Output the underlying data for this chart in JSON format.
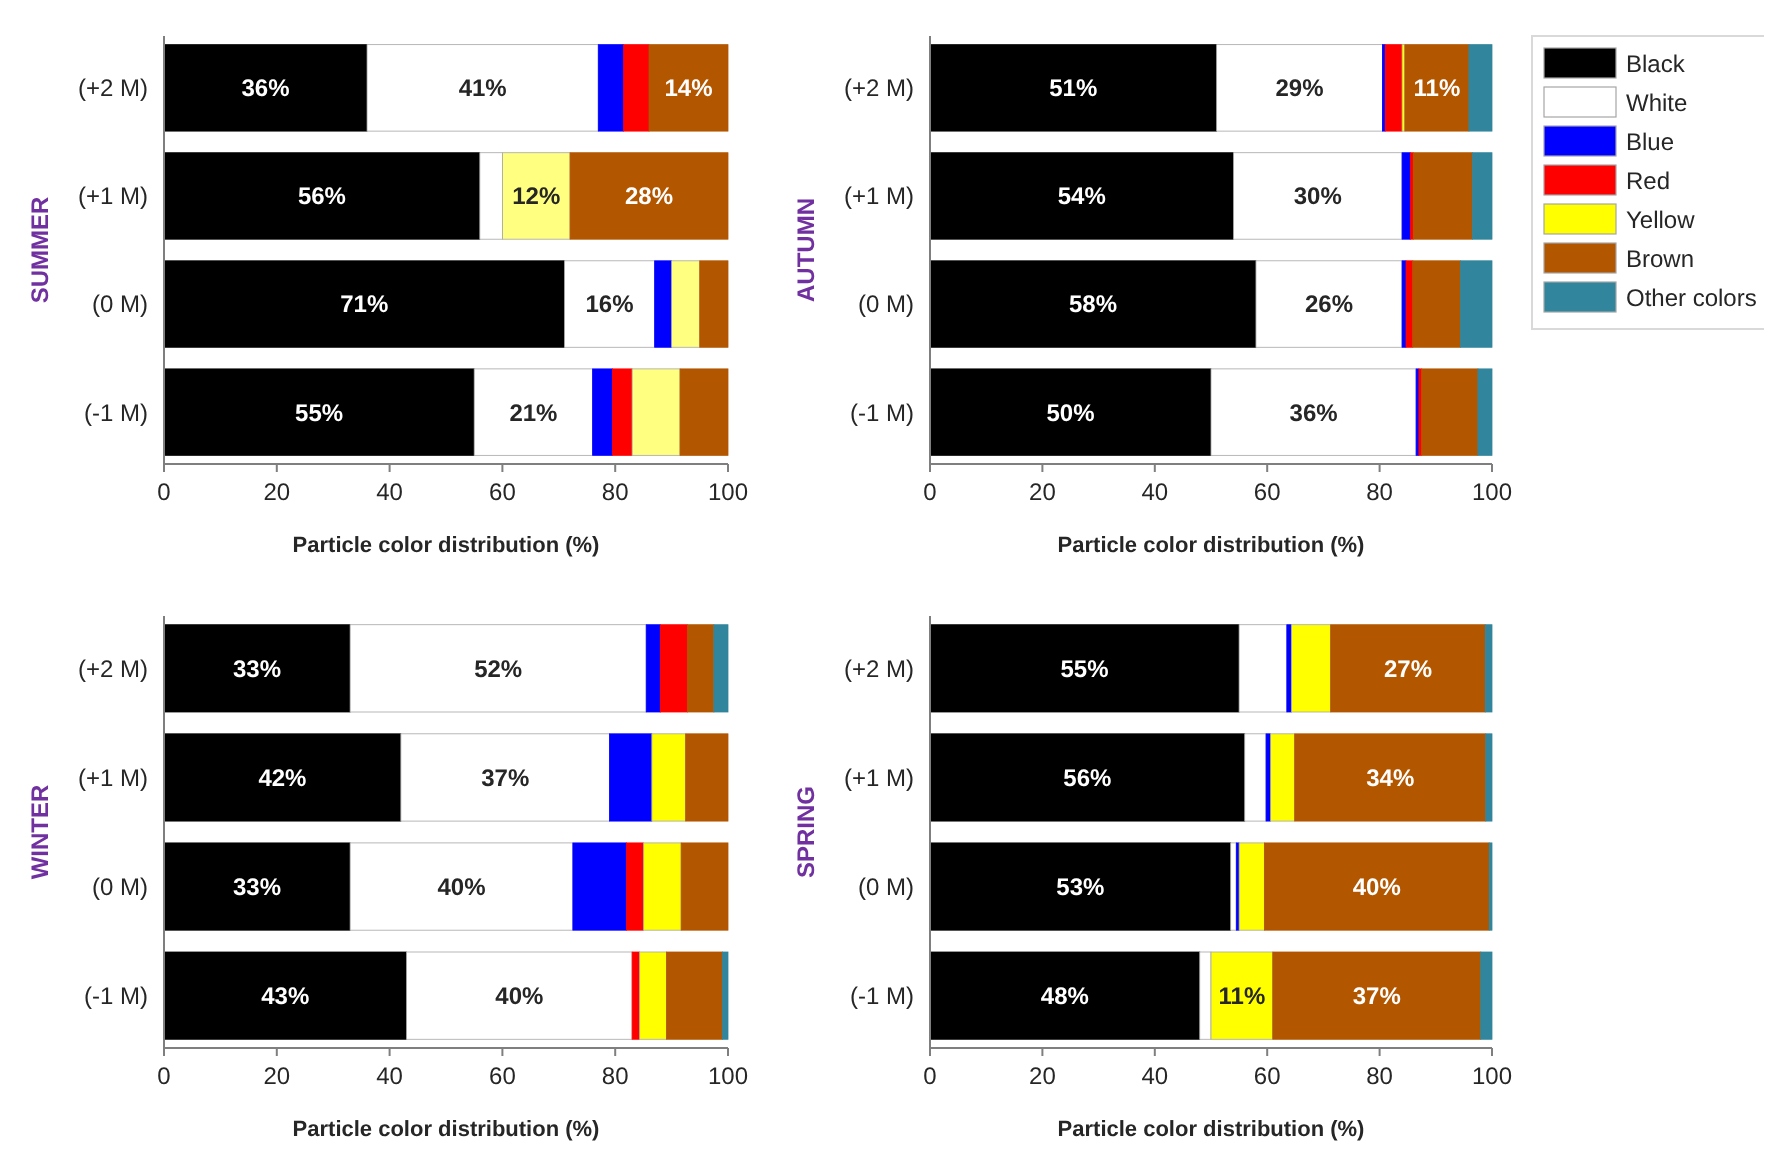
{
  "chart_data": [
    {
      "type": "bar",
      "orientation": "horizontal",
      "stacked": true,
      "ylabel": "SUMMER",
      "xlabel": "Particle color distribution (%)",
      "categories": [
        "(+2 M)",
        "(+1 M)",
        "(0 M)",
        "(-1 M)"
      ],
      "xlim": [
        0,
        100
      ],
      "xticks": [
        0,
        20,
        40,
        60,
        80,
        100
      ],
      "legend": false,
      "series": [
        {
          "color": "#000000",
          "values": [
            36,
            56,
            71,
            55
          ],
          "value_labels": [
            "36%",
            "56%",
            "71%",
            "55%"
          ]
        },
        {
          "color": "#ffffff",
          "values": [
            41,
            4,
            16,
            21
          ],
          "value_labels": [
            "41%",
            null,
            "16%",
            "21%"
          ]
        },
        {
          "color": "#0000ff",
          "values": [
            4.5,
            0,
            3,
            3.5
          ],
          "value_labels": [
            null,
            null,
            null,
            null
          ]
        },
        {
          "color": "#ff0000",
          "values": [
            4.5,
            0,
            0,
            3.5
          ],
          "value_labels": [
            null,
            null,
            null,
            null
          ]
        },
        {
          "color": "#ffff80",
          "values": [
            0,
            12,
            5,
            8.5
          ],
          "value_labels": [
            null,
            "12%",
            null,
            null
          ]
        },
        {
          "color": "#b35600",
          "values": [
            14,
            28,
            5,
            8.5
          ],
          "value_labels": [
            "14%",
            "28%",
            null,
            null
          ]
        }
      ]
    },
    {
      "type": "bar",
      "orientation": "horizontal",
      "stacked": true,
      "ylabel": "AUTUMN",
      "xlabel": "Particle color distribution (%)",
      "categories": [
        "(+2 M)",
        "(+1 M)",
        "(0 M)",
        "(-1 M)"
      ],
      "xlim": [
        0,
        100
      ],
      "xticks": [
        0,
        20,
        40,
        60,
        80,
        100
      ],
      "legend": "right",
      "series": [
        {
          "name": "Black",
          "color": "#000000",
          "values": [
            51,
            54,
            58,
            50
          ],
          "value_labels": [
            "51%",
            "54%",
            "58%",
            "50%"
          ]
        },
        {
          "name": "White",
          "color": "#ffffff",
          "values": [
            29.5,
            30,
            26,
            36.5
          ],
          "value_labels": [
            "29%",
            "30%",
            "26%",
            "36%"
          ]
        },
        {
          "name": "Blue",
          "color": "#0000ff",
          "values": [
            0.5,
            1.5,
            0.7,
            0.5
          ],
          "value_labels": [
            null,
            null,
            null,
            null
          ]
        },
        {
          "name": "Red",
          "color": "#ff0000",
          "values": [
            3,
            0.5,
            1.2,
            0.5
          ],
          "value_labels": [
            null,
            null,
            null,
            null
          ]
        },
        {
          "name": "Yellow",
          "color": "#ffff00",
          "values": [
            0.5,
            0,
            0,
            0
          ],
          "value_labels": [
            null,
            null,
            null,
            null
          ]
        },
        {
          "name": "Brown",
          "color": "#b35600",
          "values": [
            11.4,
            10.5,
            8.5,
            10
          ],
          "value_labels": [
            "11%",
            null,
            null,
            null
          ]
        },
        {
          "name": "Other colors",
          "color": "#31859c",
          "values": [
            4.1,
            3.5,
            5.6,
            2.5
          ],
          "value_labels": [
            null,
            null,
            null,
            null
          ]
        }
      ]
    },
    {
      "type": "bar",
      "orientation": "horizontal",
      "stacked": true,
      "ylabel": "WINTER",
      "xlabel": "Particle color distribution (%)",
      "categories": [
        "(+2 M)",
        "(+1 M)",
        "(0 M)",
        "(-1 M)"
      ],
      "xlim": [
        0,
        100
      ],
      "xticks": [
        0,
        20,
        40,
        60,
        80,
        100
      ],
      "legend": false,
      "series": [
        {
          "color": "#000000",
          "values": [
            33,
            42,
            33,
            43
          ],
          "value_labels": [
            "33%",
            "42%",
            "33%",
            "43%"
          ]
        },
        {
          "color": "#ffffff",
          "values": [
            52.5,
            37,
            39.5,
            40
          ],
          "value_labels": [
            "52%",
            "37%",
            "40%",
            "40%"
          ]
        },
        {
          "color": "#0000ff",
          "values": [
            2.5,
            7.5,
            9.5,
            0
          ],
          "value_labels": [
            null,
            null,
            null,
            null
          ]
        },
        {
          "color": "#ff0000",
          "values": [
            4.8,
            0,
            3,
            1.3
          ],
          "value_labels": [
            null,
            null,
            null,
            null
          ]
        },
        {
          "color": "#ffff00",
          "values": [
            0,
            6,
            6.7,
            4.8
          ],
          "value_labels": [
            null,
            null,
            null,
            null
          ]
        },
        {
          "color": "#b35600",
          "values": [
            4.7,
            7.5,
            8.3,
            9.9
          ],
          "value_labels": [
            null,
            null,
            null,
            null
          ]
        },
        {
          "color": "#31859c",
          "values": [
            2.5,
            0,
            0,
            1
          ],
          "value_labels": [
            null,
            null,
            null,
            null
          ]
        }
      ]
    },
    {
      "type": "bar",
      "orientation": "horizontal",
      "stacked": true,
      "ylabel": "SPRING",
      "xlabel": "Particle color distribution (%)",
      "categories": [
        "(+2 M)",
        "(+1 M)",
        "(0 M)",
        "(-1 M)"
      ],
      "xlim": [
        0,
        100
      ],
      "xticks": [
        0,
        20,
        40,
        60,
        80,
        100
      ],
      "legend": false,
      "series": [
        {
          "color": "#000000",
          "values": [
            55,
            56,
            53.5,
            48
          ],
          "value_labels": [
            "55%",
            "56%",
            "53%",
            "48%"
          ]
        },
        {
          "color": "#ffffff",
          "values": [
            8.5,
            3.8,
            1,
            2
          ],
          "value_labels": [
            null,
            null,
            null,
            null
          ]
        },
        {
          "color": "#0000ff",
          "values": [
            0.8,
            0.8,
            0.5,
            0
          ],
          "value_labels": [
            null,
            null,
            null,
            null
          ]
        },
        {
          "color": "#ffff00",
          "values": [
            7,
            4.3,
            4.5,
            11
          ],
          "value_labels": [
            null,
            null,
            null,
            "11%"
          ]
        },
        {
          "color": "#b35600",
          "values": [
            27.5,
            34,
            40,
            37
          ],
          "value_labels": [
            "27%",
            "34%",
            "40%",
            "37%"
          ]
        },
        {
          "color": "#31859c",
          "values": [
            1.2,
            1.1,
            0.5,
            2
          ],
          "value_labels": [
            null,
            null,
            null,
            null
          ]
        }
      ]
    }
  ]
}
